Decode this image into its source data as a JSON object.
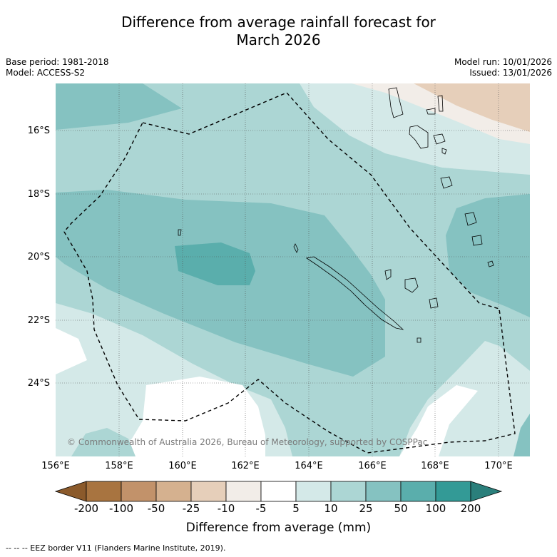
{
  "title_line1": "Difference from average rainfall forecast for",
  "title_line2": "March 2026",
  "meta_left": {
    "base_period": "Base period: 1981-2018",
    "model": "Model: ACCESS-S2"
  },
  "meta_right": {
    "model_run": "Model run: 10/01/2026",
    "issued": "Issued: 13/01/2026"
  },
  "latitude_labels": [
    "16°S",
    "18°S",
    "20°S",
    "22°S",
    "24°S"
  ],
  "longitude_labels": [
    "156°E",
    "158°E",
    "160°E",
    "162°E",
    "164°E",
    "166°E",
    "168°E",
    "170°E"
  ],
  "credit": "© Commonwealth of Australia 2026, Bureau of Meteorology, supported by COSPPac",
  "colorbar": {
    "ticks": [
      "-200",
      "-100",
      "-50",
      "-25",
      "-10",
      "-5",
      "5",
      "10",
      "25",
      "50",
      "100",
      "200"
    ],
    "colors": [
      "#8b5a2b",
      "#a87440",
      "#c2926a",
      "#d5b18f",
      "#e6cfba",
      "#f2ede8",
      "#ffffff",
      "#d4e9e8",
      "#acd6d4",
      "#85c2c1",
      "#5aaeac",
      "#339a96",
      "#2a7f7b"
    ],
    "title": "Difference from average (mm)"
  },
  "footer": "-- -- -- EEZ border V11 (Flanders Marine Institute, 2019)."
}
